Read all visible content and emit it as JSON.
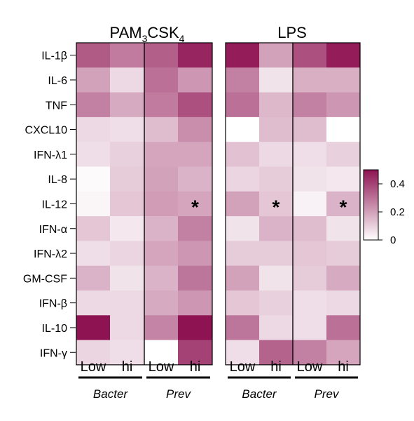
{
  "chart_data": {
    "type": "heatmap",
    "panels": [
      {
        "title": "PAM3CSK4",
        "groups": [
          {
            "name": "Bacter",
            "columns": [
              "Low",
              "hi"
            ]
          },
          {
            "name": "Prev",
            "columns": [
              "Low",
              "hi"
            ]
          }
        ]
      },
      {
        "title": "LPS",
        "groups": [
          {
            "name": "Bacter",
            "columns": [
              "Low",
              "hi"
            ]
          },
          {
            "name": "Prev",
            "columns": [
              "Low",
              "hi"
            ]
          }
        ]
      }
    ],
    "rows": [
      "IL-1β",
      "IL-6",
      "TNF",
      "CXCL10",
      "IFN-λ1",
      "IL-8",
      "IL-12",
      "IFN-α",
      "IFN-λ2",
      "GM-CSF",
      "IFN-β",
      "IL-10",
      "IFN-γ"
    ],
    "values": [
      [
        0.35,
        0.28,
        0.34,
        0.46,
        0.48,
        0.2,
        0.37,
        0.48
      ],
      [
        0.2,
        0.08,
        0.3,
        0.22,
        0.27,
        0.06,
        0.17,
        0.17
      ],
      [
        0.27,
        0.18,
        0.28,
        0.37,
        0.3,
        0.15,
        0.27,
        0.22
      ],
      [
        0.08,
        0.07,
        0.14,
        0.24,
        0.0,
        0.14,
        0.14,
        0.0
      ],
      [
        0.07,
        0.1,
        0.19,
        0.19,
        0.13,
        0.08,
        0.07,
        0.1
      ],
      [
        0.01,
        0.11,
        0.2,
        0.16,
        0.09,
        0.11,
        0.06,
        0.05
      ],
      [
        0.02,
        0.12,
        0.21,
        0.19,
        0.2,
        0.12,
        0.03,
        0.16
      ],
      [
        0.12,
        0.05,
        0.16,
        0.27,
        0.06,
        0.16,
        0.14,
        0.06
      ],
      [
        0.07,
        0.09,
        0.19,
        0.22,
        0.11,
        0.11,
        0.12,
        0.11
      ],
      [
        0.16,
        0.06,
        0.16,
        0.29,
        0.2,
        0.06,
        0.11,
        0.18
      ],
      [
        0.08,
        0.08,
        0.18,
        0.22,
        0.12,
        0.1,
        0.07,
        0.08
      ],
      [
        0.5,
        0.08,
        0.26,
        0.51,
        0.29,
        0.08,
        0.07,
        0.3
      ],
      [
        0.09,
        0.07,
        0.0,
        0.4,
        0.07,
        0.33,
        0.27,
        0.19
      ]
    ],
    "significance": [
      {
        "row": "IL-12",
        "col": 3,
        "mark": "*"
      },
      {
        "row": "IL-12",
        "col": 5,
        "mark": "*"
      },
      {
        "row": "IL-12",
        "col": 7,
        "mark": "*"
      }
    ],
    "colorscale": {
      "min": 0,
      "max": 0.5,
      "low_color": "#ffffff",
      "high_color": "#8e1352"
    },
    "colorbar": {
      "ticks": [
        "0.4",
        "0.2",
        "0"
      ],
      "tick_values": [
        0.4,
        0.2,
        0
      ]
    },
    "legend_placement": "right",
    "grid": false
  }
}
